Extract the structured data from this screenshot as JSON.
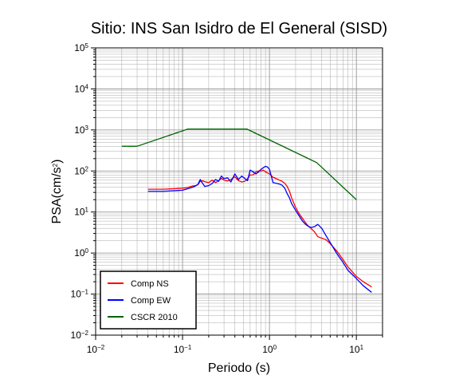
{
  "chart_data": {
    "type": "line",
    "title": "Sitio: INS San Isidro de El General (SISD)",
    "xlabel": "Periodo (s)",
    "ylabel": {
      "base": "PSA(cm/s",
      "sup": "2",
      "tail": ")"
    },
    "xscale": "log",
    "yscale": "log",
    "xlim": [
      0.01,
      20
    ],
    "ylim": [
      0.01,
      100000
    ],
    "grid": true,
    "legend_position": "bottom-left",
    "x_ticks": [
      {
        "base": "10",
        "exp": "−2",
        "value": 0.01
      },
      {
        "base": "10",
        "exp": "−1",
        "value": 0.1
      },
      {
        "base": "10",
        "exp": "0",
        "value": 1
      },
      {
        "base": "10",
        "exp": "1",
        "value": 10
      }
    ],
    "y_ticks": [
      {
        "base": "10",
        "exp": "−2",
        "value": 0.01
      },
      {
        "base": "10",
        "exp": "−1",
        "value": 0.1
      },
      {
        "base": "10",
        "exp": "0",
        "value": 1
      },
      {
        "base": "10",
        "exp": "1",
        "value": 10
      },
      {
        "base": "10",
        "exp": "2",
        "value": 100
      },
      {
        "base": "10",
        "exp": "3",
        "value": 1000
      },
      {
        "base": "10",
        "exp": "4",
        "value": 10000
      },
      {
        "base": "10",
        "exp": "5",
        "value": 100000
      }
    ],
    "series": [
      {
        "name": "Comp NS",
        "color": "#ff0000",
        "x": [
          0.04,
          0.05,
          0.06,
          0.07,
          0.08,
          0.09,
          0.1,
          0.11,
          0.12,
          0.13,
          0.14,
          0.15,
          0.16,
          0.17,
          0.18,
          0.2,
          0.22,
          0.24,
          0.26,
          0.28,
          0.3,
          0.33,
          0.36,
          0.4,
          0.44,
          0.48,
          0.52,
          0.56,
          0.6,
          0.65,
          0.7,
          0.75,
          0.8,
          0.85,
          0.9,
          0.95,
          1.0,
          1.1,
          1.2,
          1.3,
          1.4,
          1.5,
          1.6,
          1.7,
          1.8,
          2.0,
          2.2,
          2.4,
          2.6,
          2.8,
          3.0,
          3.3,
          3.6,
          4.0,
          4.5,
          5.0,
          6.0,
          7.0,
          8.0,
          10.0,
          12.0,
          15.0
        ],
        "y": [
          36,
          36,
          36,
          36.5,
          37,
          37.5,
          38,
          39,
          41,
          43,
          44,
          46,
          56,
          58,
          55,
          52,
          60,
          52,
          58,
          66,
          60,
          57,
          62,
          72,
          58,
          54,
          56,
          65,
          80,
          80,
          95,
          100,
          99,
          105,
          95,
          90,
          85,
          70,
          65,
          60,
          56,
          50,
          42,
          32,
          22,
          13,
          9,
          7,
          5.5,
          4.5,
          4,
          3.3,
          2.5,
          2.3,
          2.1,
          1.7,
          1.1,
          0.7,
          0.46,
          0.27,
          0.2,
          0.15
        ]
      },
      {
        "name": "Comp EW",
        "color": "#0000ff",
        "x": [
          0.04,
          0.05,
          0.06,
          0.07,
          0.08,
          0.09,
          0.1,
          0.11,
          0.12,
          0.13,
          0.14,
          0.15,
          0.16,
          0.17,
          0.18,
          0.2,
          0.22,
          0.24,
          0.26,
          0.28,
          0.3,
          0.33,
          0.36,
          0.4,
          0.44,
          0.48,
          0.52,
          0.56,
          0.6,
          0.65,
          0.7,
          0.75,
          0.8,
          0.85,
          0.9,
          0.95,
          1.0,
          1.1,
          1.2,
          1.3,
          1.4,
          1.5,
          1.6,
          1.7,
          1.8,
          2.0,
          2.2,
          2.4,
          2.6,
          2.8,
          3.0,
          3.3,
          3.6,
          4.0,
          4.5,
          5.0,
          6.0,
          7.0,
          8.0,
          10.0,
          12.0,
          15.0
        ],
        "y": [
          32,
          32,
          32,
          32.5,
          33,
          33.5,
          34,
          36,
          38,
          40,
          43,
          47,
          62,
          50,
          42,
          44,
          50,
          62,
          56,
          75,
          65,
          68,
          54,
          85,
          62,
          75,
          66,
          58,
          105,
          95,
          85,
          95,
          110,
          120,
          130,
          125,
          110,
          52,
          50,
          48,
          45,
          38,
          28,
          22,
          16,
          11,
          8,
          6,
          5,
          4.5,
          4.2,
          4.4,
          5,
          4,
          2.6,
          1.8,
          0.95,
          0.6,
          0.38,
          0.24,
          0.16,
          0.11
        ]
      },
      {
        "name": "CSCR 2010",
        "color": "#006400",
        "x": [
          0.02,
          0.03,
          0.115,
          0.55,
          3.5,
          10.0
        ],
        "y": [
          400,
          400,
          1050,
          1050,
          160,
          20
        ]
      }
    ]
  }
}
